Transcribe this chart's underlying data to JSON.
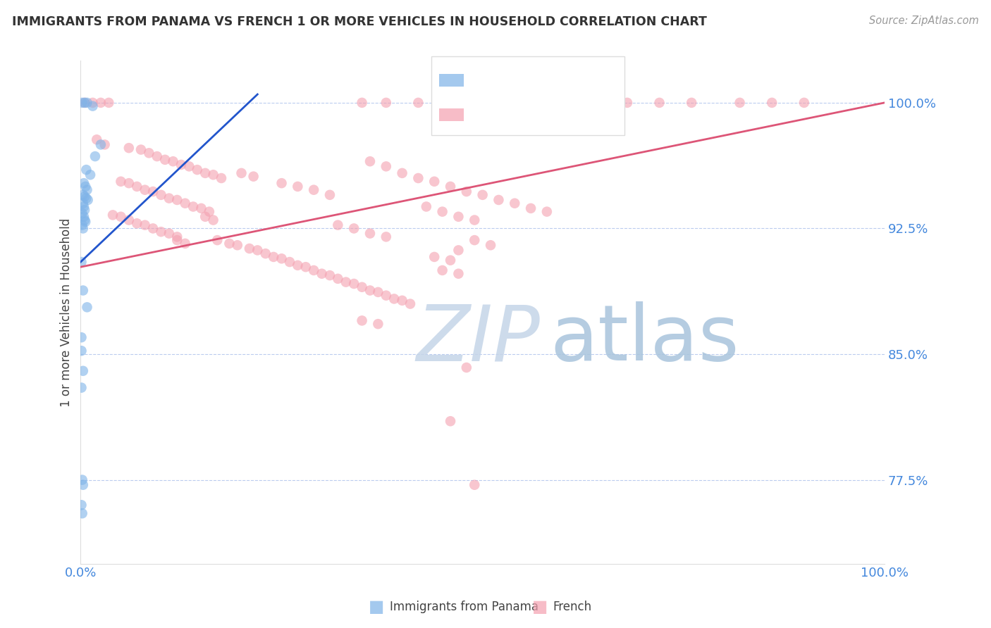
{
  "title": "IMMIGRANTS FROM PANAMA VS FRENCH 1 OR MORE VEHICLES IN HOUSEHOLD CORRELATION CHART",
  "source": "Source: ZipAtlas.com",
  "ylabel": "1 or more Vehicles in Household",
  "ytick_labels": [
    "77.5%",
    "85.0%",
    "92.5%",
    "100.0%"
  ],
  "ytick_values": [
    0.775,
    0.85,
    0.925,
    1.0
  ],
  "xlim": [
    0.0,
    1.0
  ],
  "ylim": [
    0.725,
    1.025
  ],
  "blue_color": "#7EB3E8",
  "pink_color": "#F4A0B0",
  "trend_blue_color": "#2255CC",
  "trend_pink_color": "#DD5577",
  "watermark_zip": "ZIP",
  "watermark_atlas": "atlas",
  "watermark_color_zip": "#C5D5E8",
  "watermark_color_atlas": "#A8C4DC",
  "label_blue": "Immigrants from Panama",
  "label_pink": "French",
  "blue_points": [
    [
      0.002,
      1.0
    ],
    [
      0.005,
      1.0
    ],
    [
      0.008,
      1.0
    ],
    [
      0.015,
      0.998
    ],
    [
      0.025,
      0.975
    ],
    [
      0.018,
      0.968
    ],
    [
      0.007,
      0.96
    ],
    [
      0.012,
      0.957
    ],
    [
      0.004,
      0.952
    ],
    [
      0.006,
      0.95
    ],
    [
      0.008,
      0.948
    ],
    [
      0.003,
      0.945
    ],
    [
      0.005,
      0.944
    ],
    [
      0.007,
      0.943
    ],
    [
      0.009,
      0.942
    ],
    [
      0.003,
      0.94
    ],
    [
      0.004,
      0.938
    ],
    [
      0.005,
      0.936
    ],
    [
      0.002,
      0.934
    ],
    [
      0.004,
      0.932
    ],
    [
      0.005,
      0.93
    ],
    [
      0.006,
      0.929
    ],
    [
      0.002,
      0.927
    ],
    [
      0.003,
      0.925
    ],
    [
      0.001,
      0.905
    ],
    [
      0.003,
      0.888
    ],
    [
      0.008,
      0.878
    ],
    [
      0.001,
      0.86
    ],
    [
      0.001,
      0.852
    ],
    [
      0.003,
      0.84
    ],
    [
      0.001,
      0.83
    ],
    [
      0.002,
      0.775
    ],
    [
      0.003,
      0.772
    ],
    [
      0.001,
      0.76
    ],
    [
      0.002,
      0.755
    ]
  ],
  "pink_points": [
    [
      0.005,
      1.0
    ],
    [
      0.015,
      1.0
    ],
    [
      0.025,
      1.0
    ],
    [
      0.035,
      1.0
    ],
    [
      0.35,
      1.0
    ],
    [
      0.38,
      1.0
    ],
    [
      0.42,
      1.0
    ],
    [
      0.48,
      1.0
    ],
    [
      0.58,
      1.0
    ],
    [
      0.64,
      1.0
    ],
    [
      0.68,
      1.0
    ],
    [
      0.72,
      1.0
    ],
    [
      0.76,
      1.0
    ],
    [
      0.82,
      1.0
    ],
    [
      0.86,
      1.0
    ],
    [
      0.9,
      1.0
    ],
    [
      0.02,
      0.978
    ],
    [
      0.03,
      0.975
    ],
    [
      0.06,
      0.973
    ],
    [
      0.075,
      0.972
    ],
    [
      0.085,
      0.97
    ],
    [
      0.095,
      0.968
    ],
    [
      0.105,
      0.966
    ],
    [
      0.115,
      0.965
    ],
    [
      0.125,
      0.963
    ],
    [
      0.135,
      0.962
    ],
    [
      0.145,
      0.96
    ],
    [
      0.155,
      0.958
    ],
    [
      0.165,
      0.957
    ],
    [
      0.175,
      0.955
    ],
    [
      0.05,
      0.953
    ],
    [
      0.06,
      0.952
    ],
    [
      0.07,
      0.95
    ],
    [
      0.08,
      0.948
    ],
    [
      0.09,
      0.947
    ],
    [
      0.1,
      0.945
    ],
    [
      0.11,
      0.943
    ],
    [
      0.12,
      0.942
    ],
    [
      0.13,
      0.94
    ],
    [
      0.14,
      0.938
    ],
    [
      0.15,
      0.937
    ],
    [
      0.16,
      0.935
    ],
    [
      0.04,
      0.933
    ],
    [
      0.05,
      0.932
    ],
    [
      0.06,
      0.93
    ],
    [
      0.07,
      0.928
    ],
    [
      0.08,
      0.927
    ],
    [
      0.09,
      0.925
    ],
    [
      0.1,
      0.923
    ],
    [
      0.11,
      0.922
    ],
    [
      0.12,
      0.92
    ],
    [
      0.17,
      0.918
    ],
    [
      0.185,
      0.916
    ],
    [
      0.195,
      0.915
    ],
    [
      0.21,
      0.913
    ],
    [
      0.22,
      0.912
    ],
    [
      0.23,
      0.91
    ],
    [
      0.24,
      0.908
    ],
    [
      0.25,
      0.907
    ],
    [
      0.26,
      0.905
    ],
    [
      0.27,
      0.903
    ],
    [
      0.28,
      0.902
    ],
    [
      0.29,
      0.9
    ],
    [
      0.3,
      0.898
    ],
    [
      0.31,
      0.897
    ],
    [
      0.32,
      0.895
    ],
    [
      0.33,
      0.893
    ],
    [
      0.34,
      0.892
    ],
    [
      0.35,
      0.89
    ],
    [
      0.36,
      0.888
    ],
    [
      0.37,
      0.887
    ],
    [
      0.38,
      0.885
    ],
    [
      0.39,
      0.883
    ],
    [
      0.4,
      0.882
    ],
    [
      0.41,
      0.88
    ],
    [
      0.43,
      0.938
    ],
    [
      0.45,
      0.935
    ],
    [
      0.47,
      0.932
    ],
    [
      0.49,
      0.93
    ],
    [
      0.36,
      0.965
    ],
    [
      0.38,
      0.962
    ],
    [
      0.4,
      0.958
    ],
    [
      0.42,
      0.955
    ],
    [
      0.44,
      0.953
    ],
    [
      0.46,
      0.95
    ],
    [
      0.48,
      0.947
    ],
    [
      0.5,
      0.945
    ],
    [
      0.52,
      0.942
    ],
    [
      0.54,
      0.94
    ],
    [
      0.56,
      0.937
    ],
    [
      0.58,
      0.935
    ],
    [
      0.32,
      0.927
    ],
    [
      0.34,
      0.925
    ],
    [
      0.36,
      0.922
    ],
    [
      0.38,
      0.92
    ],
    [
      0.44,
      0.908
    ],
    [
      0.46,
      0.906
    ],
    [
      0.47,
      0.912
    ],
    [
      0.45,
      0.9
    ],
    [
      0.47,
      0.898
    ],
    [
      0.35,
      0.87
    ],
    [
      0.37,
      0.868
    ],
    [
      0.12,
      0.918
    ],
    [
      0.13,
      0.916
    ],
    [
      0.48,
      0.842
    ],
    [
      0.46,
      0.81
    ],
    [
      0.49,
      0.772
    ],
    [
      0.29,
      0.948
    ],
    [
      0.31,
      0.945
    ],
    [
      0.25,
      0.952
    ],
    [
      0.27,
      0.95
    ],
    [
      0.2,
      0.958
    ],
    [
      0.215,
      0.956
    ],
    [
      0.49,
      0.918
    ],
    [
      0.51,
      0.915
    ],
    [
      0.155,
      0.932
    ],
    [
      0.165,
      0.93
    ]
  ]
}
